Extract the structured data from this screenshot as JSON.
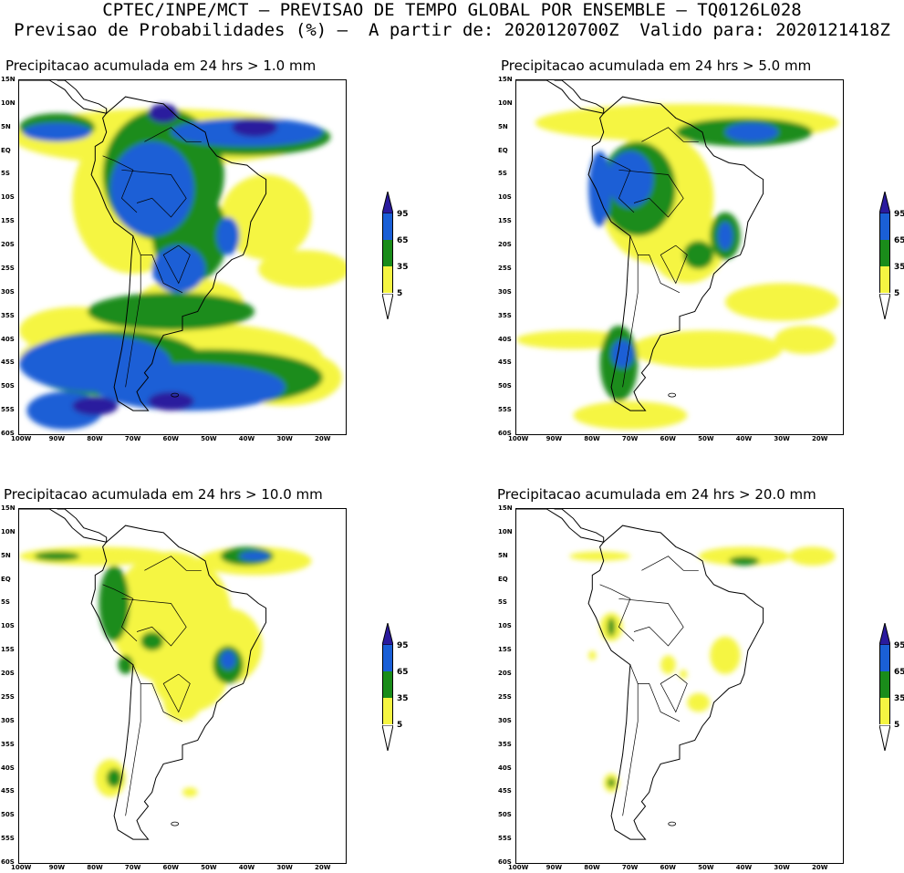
{
  "header": {
    "line1": "CPTEC/INPE/MCT – PREVISAO DE TEMPO GLOBAL POR ENSEMBLE – TQ0126L028",
    "line2": "Previsao de Probabilidades (%) –  A partir de: 2020120700Z  Valido para: 2020121418Z"
  },
  "panels": [
    {
      "title": "Precipitacao acumulada em 24 hrs > 1.0 mm",
      "threshold_mm": 1.0
    },
    {
      "title": "Precipitacao acumulada em 24 hrs > 5.0 mm",
      "threshold_mm": 5.0
    },
    {
      "title": "Precipitacao acumulada em 24 hrs > 10.0 mm",
      "threshold_mm": 10.0
    },
    {
      "title": "Precipitacao acumulada em 24 hrs > 20.0 mm",
      "threshold_mm": 20.0
    }
  ],
  "axes": {
    "lat_labels": [
      "15N",
      "10N",
      "5N",
      "EQ",
      "5S",
      "10S",
      "15S",
      "20S",
      "25S",
      "30S",
      "35S",
      "40S",
      "45S",
      "50S",
      "55S",
      "60S"
    ],
    "lon_labels": [
      "100W",
      "90W",
      "80W",
      "70W",
      "60W",
      "50W",
      "40W",
      "30W",
      "20W"
    ]
  },
  "legend": {
    "labels": [
      "95",
      "65",
      "35",
      "5"
    ],
    "colors": {
      "c95": "#2a1a9e",
      "c65": "#1a5fd6",
      "c35": "#1a8c1a",
      "c5": "#f5f542"
    }
  }
}
